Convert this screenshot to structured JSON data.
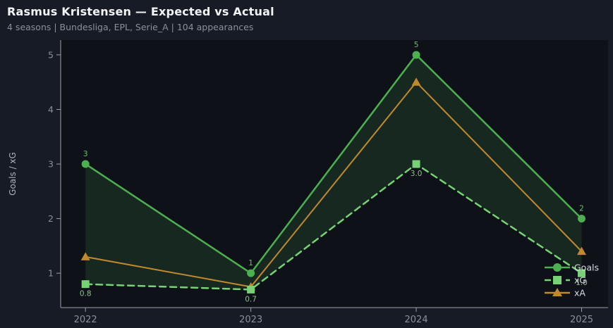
{
  "header": {
    "title": "Rasmus Kristensen — Expected vs Actual",
    "subtitle": "4 seasons | Bundesliga, EPL, Serie_A | 104 appearances"
  },
  "chart_data": {
    "type": "line",
    "title": "Rasmus Kristensen — Expected vs Actual",
    "subtitle": "4 seasons | Bundesliga, EPL, Serie_A | 104 appearances",
    "categories": [
      "2022",
      "2023",
      "2024",
      "2025"
    ],
    "series": [
      {
        "name": "Goals",
        "values": [
          3,
          1,
          5,
          2
        ],
        "color": "#4caf50",
        "line_style": "solid",
        "marker": "circle",
        "point_labels": [
          "3",
          "1",
          "5",
          "2"
        ],
        "label_position": "above",
        "label_color": "#69c06a"
      },
      {
        "name": "xG",
        "values": [
          0.8,
          0.7,
          3.0,
          1.0
        ],
        "color": "#76d275",
        "line_style": "dashed",
        "marker": "square",
        "point_labels": [
          "0.8",
          "0.7",
          "3.0",
          "1.0"
        ],
        "label_position": "below",
        "label_color": "#93bd93"
      },
      {
        "name": "xA",
        "values": [
          1.3,
          0.75,
          4.5,
          1.4
        ],
        "color": "#c0892e",
        "line_style": "solid",
        "marker": "triangle",
        "point_labels": null,
        "label_position": null,
        "label_color": null
      }
    ],
    "fill_between": {
      "upper": "Goals",
      "lower": "xG",
      "color": "#4caf50",
      "opacity": 0.15
    },
    "xlabel": "",
    "ylabel": "Goals / xG",
    "yticks": [
      1,
      2,
      3,
      4,
      5
    ],
    "ylim": [
      0.37,
      5.27
    ],
    "xlim": [
      -0.15,
      3.16
    ],
    "grid": false,
    "legend": {
      "position": "lower right",
      "entries": [
        "Goals",
        "xG",
        "xA"
      ]
    }
  },
  "colors": {
    "figure_bg": "#171b25",
    "plot_bg": "#0e1118",
    "spine": "#9ba1a9",
    "tick_label": "#8a909a",
    "axis_label": "#aeb4bc",
    "legend_text": "#d8dbdf",
    "title": "#f2f4f7",
    "subtitle": "#8a909a"
  }
}
